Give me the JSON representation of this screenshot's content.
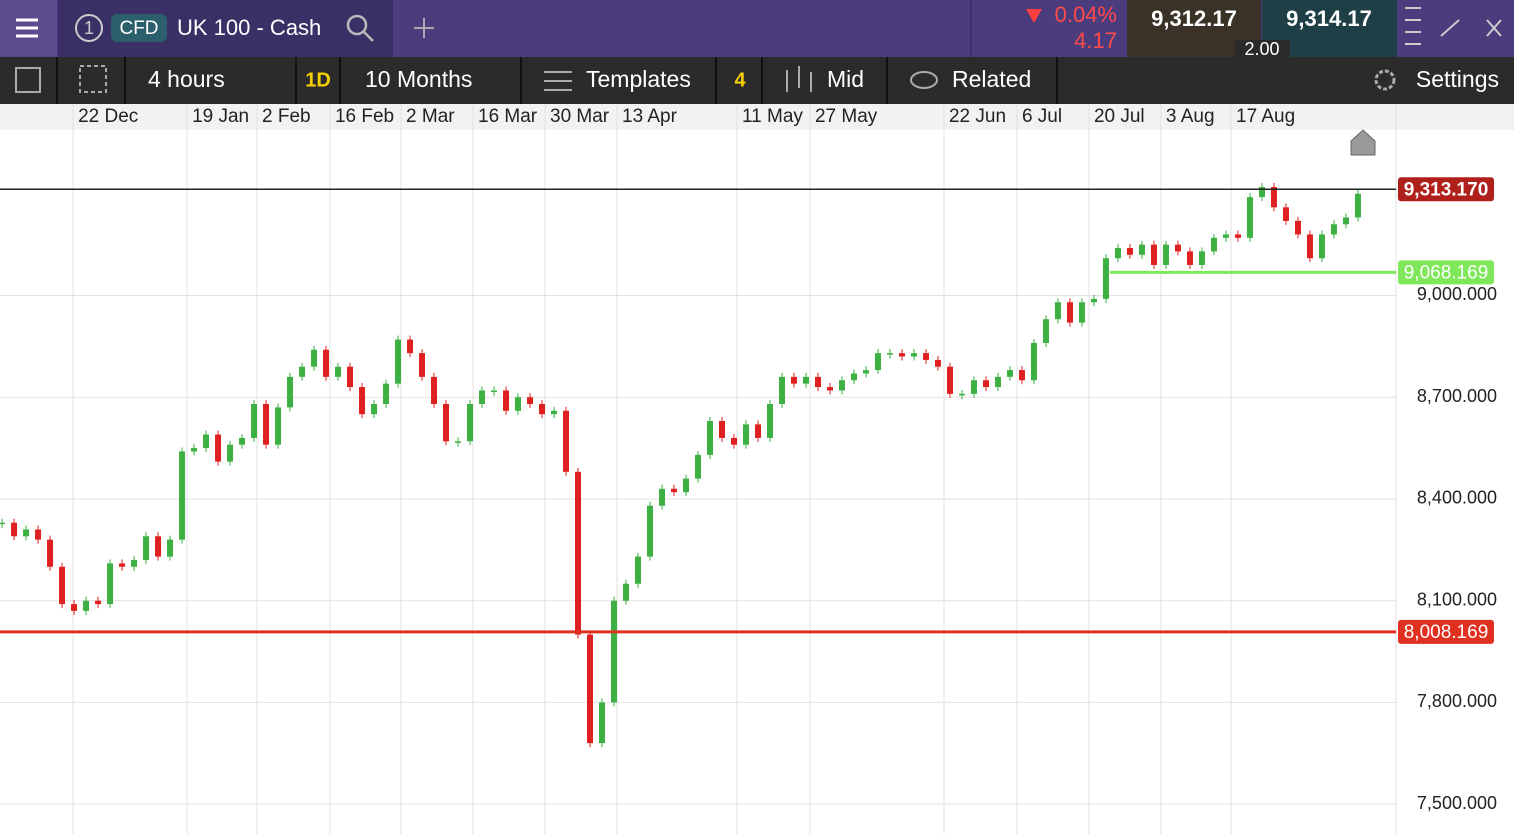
{
  "header": {
    "tab_number": "1",
    "badge": "CFD",
    "instrument": "UK 100 - Cash",
    "change_pct": "0.04%",
    "change": "4.17",
    "sell": "9,312.17",
    "buy": "9,314.17",
    "spread": "2.00"
  },
  "toolbar": {
    "interval": "4 hours",
    "quick": "1D",
    "range": "10 Months",
    "templates": "Templates",
    "count": "4",
    "price": "Mid",
    "related": "Related",
    "settings": "Settings"
  },
  "chart_data": {
    "type": "candlestick",
    "up_color": "#3cb043",
    "down_color": "#e02020",
    "values": [
      8330,
      8290,
      8310,
      8280,
      8200,
      8090,
      8070,
      8100,
      8090,
      8210,
      8200,
      8220,
      8290,
      8230,
      8280,
      8540,
      8550,
      8590,
      8510,
      8560,
      8580,
      8680,
      8560,
      8670,
      8760,
      8790,
      8840,
      8760,
      8790,
      8730,
      8650,
      8680,
      8740,
      8870,
      8830,
      8760,
      8680,
      8570,
      8570,
      8680,
      8720,
      8720,
      8660,
      8700,
      8680,
      8650,
      8660,
      8480,
      8000,
      7680,
      7800,
      8100,
      8150,
      8230,
      8380,
      8430,
      8420,
      8460,
      8530,
      8630,
      8580,
      8560,
      8620,
      8580,
      8680,
      8760,
      8740,
      8760,
      8730,
      8720,
      8750,
      8770,
      8780,
      8830,
      8830,
      8820,
      8830,
      8810,
      8790,
      8710,
      8710,
      8750,
      8730,
      8760,
      8780,
      8750,
      8860,
      8930,
      8980,
      8920,
      8980,
      8990,
      9110,
      9140,
      9120,
      9150,
      9090,
      9150,
      9130,
      9090,
      9130,
      9170,
      9180,
      9170,
      9290,
      9320,
      9260,
      9220,
      9180,
      9110,
      9180,
      9210,
      9230,
      9300
    ],
    "xlim": [
      -0.17,
      116.17
    ],
    "xticks": [
      {
        "value": 5.92,
        "label": "22 Dec"
      },
      {
        "value": 15.42,
        "label": "19 Jan"
      },
      {
        "value": 21.25,
        "label": "2 Feb"
      },
      {
        "value": 27.33,
        "label": "16 Feb"
      },
      {
        "value": 33.25,
        "label": "2 Mar"
      },
      {
        "value": 39.25,
        "label": "16 Mar"
      },
      {
        "value": 45.25,
        "label": "30 Mar"
      },
      {
        "value": 51.25,
        "label": "13 Apr"
      },
      {
        "value": 61.25,
        "label": "11 May"
      },
      {
        "value": 67.33,
        "label": "27 May"
      },
      {
        "value": 78.5,
        "label": "22 Jun"
      },
      {
        "value": 84.58,
        "label": "6 Jul"
      },
      {
        "value": 90.58,
        "label": "20 Jul"
      },
      {
        "value": 96.58,
        "label": "3 Aug"
      },
      {
        "value": 102.42,
        "label": "17 Aug"
      }
    ],
    "ylim": [
      7412,
      9488
    ],
    "yticks": [
      {
        "value": 7500,
        "label": "7,500.000"
      },
      {
        "value": 7800,
        "label": "7,800.000"
      },
      {
        "value": 8100,
        "label": "8,100.000"
      },
      {
        "value": 8400,
        "label": "8,400.000"
      },
      {
        "value": 8700,
        "label": "8,700.000"
      },
      {
        "value": 9000,
        "label": "9,000.000"
      }
    ],
    "grid": true,
    "price_lines": [
      {
        "value": 9313.17,
        "label": "9,313.170",
        "color": "#222222",
        "box": "#b0201a"
      },
      {
        "value": 9068.169,
        "label": "9,068.169",
        "color": "#7ee85a",
        "box": "#7ee85a",
        "from": 92.33
      },
      {
        "value": 8008.169,
        "label": "8,008.169",
        "color": "#e03020",
        "box": "#e03020"
      }
    ]
  }
}
